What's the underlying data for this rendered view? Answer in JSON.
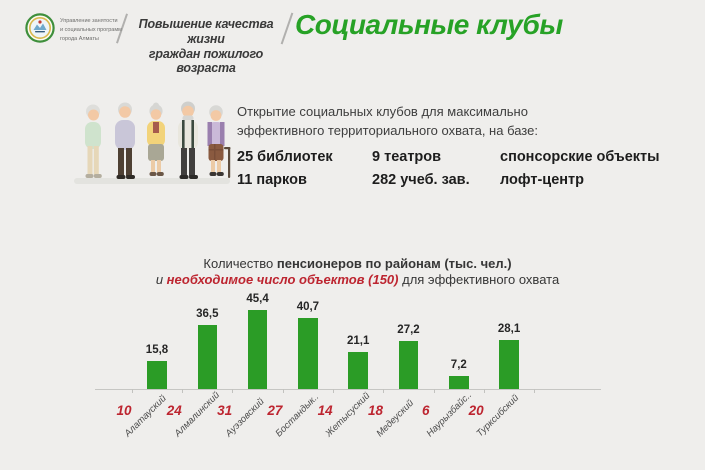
{
  "colors": {
    "background": "#efeeec",
    "accent_green": "#2b9c26",
    "accent_red": "#bd2530",
    "text_dark": "#2e2e2e"
  },
  "header": {
    "logo_text": "Управление занятости\nи социальных программ\nгорода Алматы",
    "program_title": "Повышение качества жизни\nграждан пожилого возраста",
    "main_title": "Социальные клубы"
  },
  "intro": {
    "text": "Открытие социальных клубов для максимально\nэффективного территориального охвата, на базе:"
  },
  "stats": [
    [
      "25 библиотек",
      "11 парков"
    ],
    [
      "9 театров",
      "282 учеб. зав."
    ],
    [
      "спонсорские объекты",
      "лофт-центр"
    ]
  ],
  "chart_data": {
    "type": "bar",
    "title_line1_regular": "Количество ",
    "title_line1_bold": "пенсионеров по районам (тыс. чел.)",
    "title_line2_prefix": "и ",
    "title_line2_red": "необходимое число объектов (150)",
    "title_line2_suffix": " для эффективного охвата",
    "categories": [
      "Алатауский",
      "Алмалинский",
      "Ауэзовский",
      "Бостандык..",
      "Жетысуский",
      "Медеуский",
      "Наурызбайс..",
      "Турксибский"
    ],
    "values": [
      15.8,
      36.5,
      45.4,
      40.7,
      21.1,
      27.2,
      7.2,
      28.1
    ],
    "value_labels": [
      "15,8",
      "36,5",
      "45,4",
      "40,7",
      "21,1",
      "27,2",
      "7,2",
      "28,1"
    ],
    "required_objects": [
      "10",
      "24",
      "31",
      "27",
      "14",
      "18",
      "6",
      "20"
    ],
    "required_objects_total": 150,
    "bar_color": "#2b9c26",
    "number_color": "#bd2530",
    "ylim": [
      0,
      50
    ],
    "grid": false,
    "legend": false
  }
}
